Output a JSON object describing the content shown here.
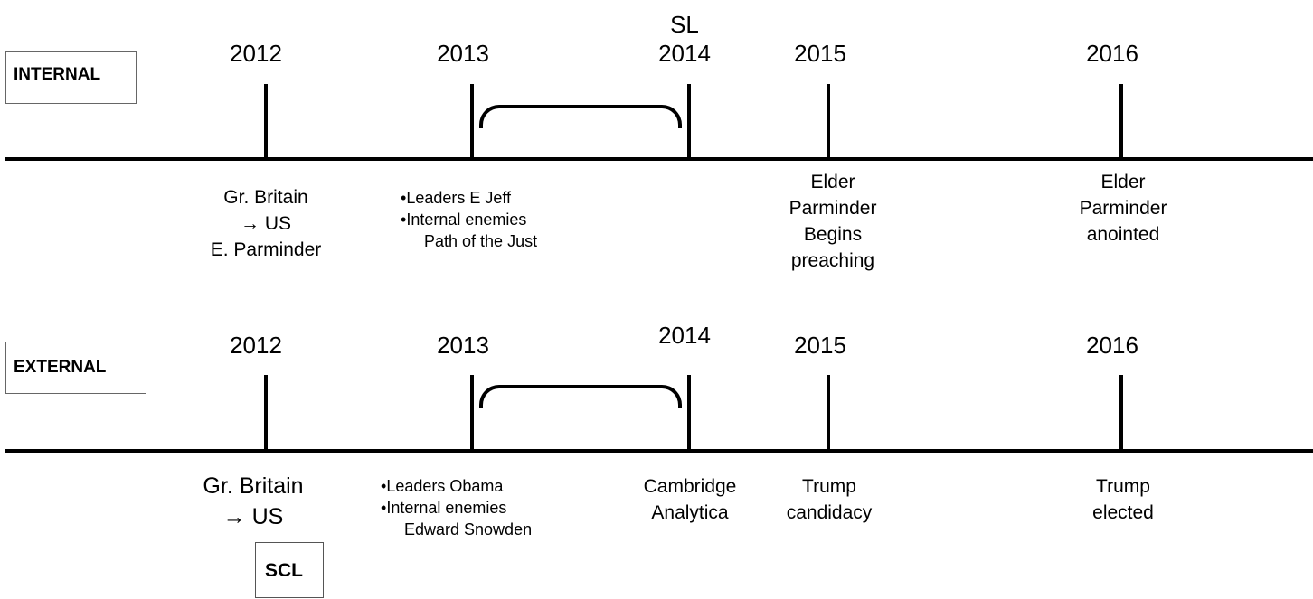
{
  "internal": {
    "section_label": "INTERNAL",
    "sl_label": "SL",
    "years": [
      "2012",
      "2013",
      "2014",
      "2015",
      "2016"
    ],
    "event_2012": [
      "Gr. Britain",
      "→ US",
      "E. Parminder"
    ],
    "event_2013": [
      "Leaders E Jeff",
      "Internal enemies",
      "Path of the Just"
    ],
    "event_2015": [
      "Elder",
      "Parminder",
      "Begins",
      "preaching"
    ],
    "event_2016": [
      "Elder",
      "Parminder",
      "anointed"
    ]
  },
  "external": {
    "section_label": "EXTERNAL",
    "years": [
      "2012",
      "2013",
      "2014",
      "2015",
      "2016"
    ],
    "event_2012": [
      "Gr. Britain",
      "→ US"
    ],
    "scl_label": "SCL",
    "event_2013": [
      "Leaders Obama",
      "Internal enemies",
      "Edward Snowden"
    ],
    "event_2014": [
      "Cambridge",
      "Analytica"
    ],
    "event_2015": [
      "Trump",
      "candidacy"
    ],
    "event_2016": [
      "Trump",
      "elected"
    ]
  }
}
